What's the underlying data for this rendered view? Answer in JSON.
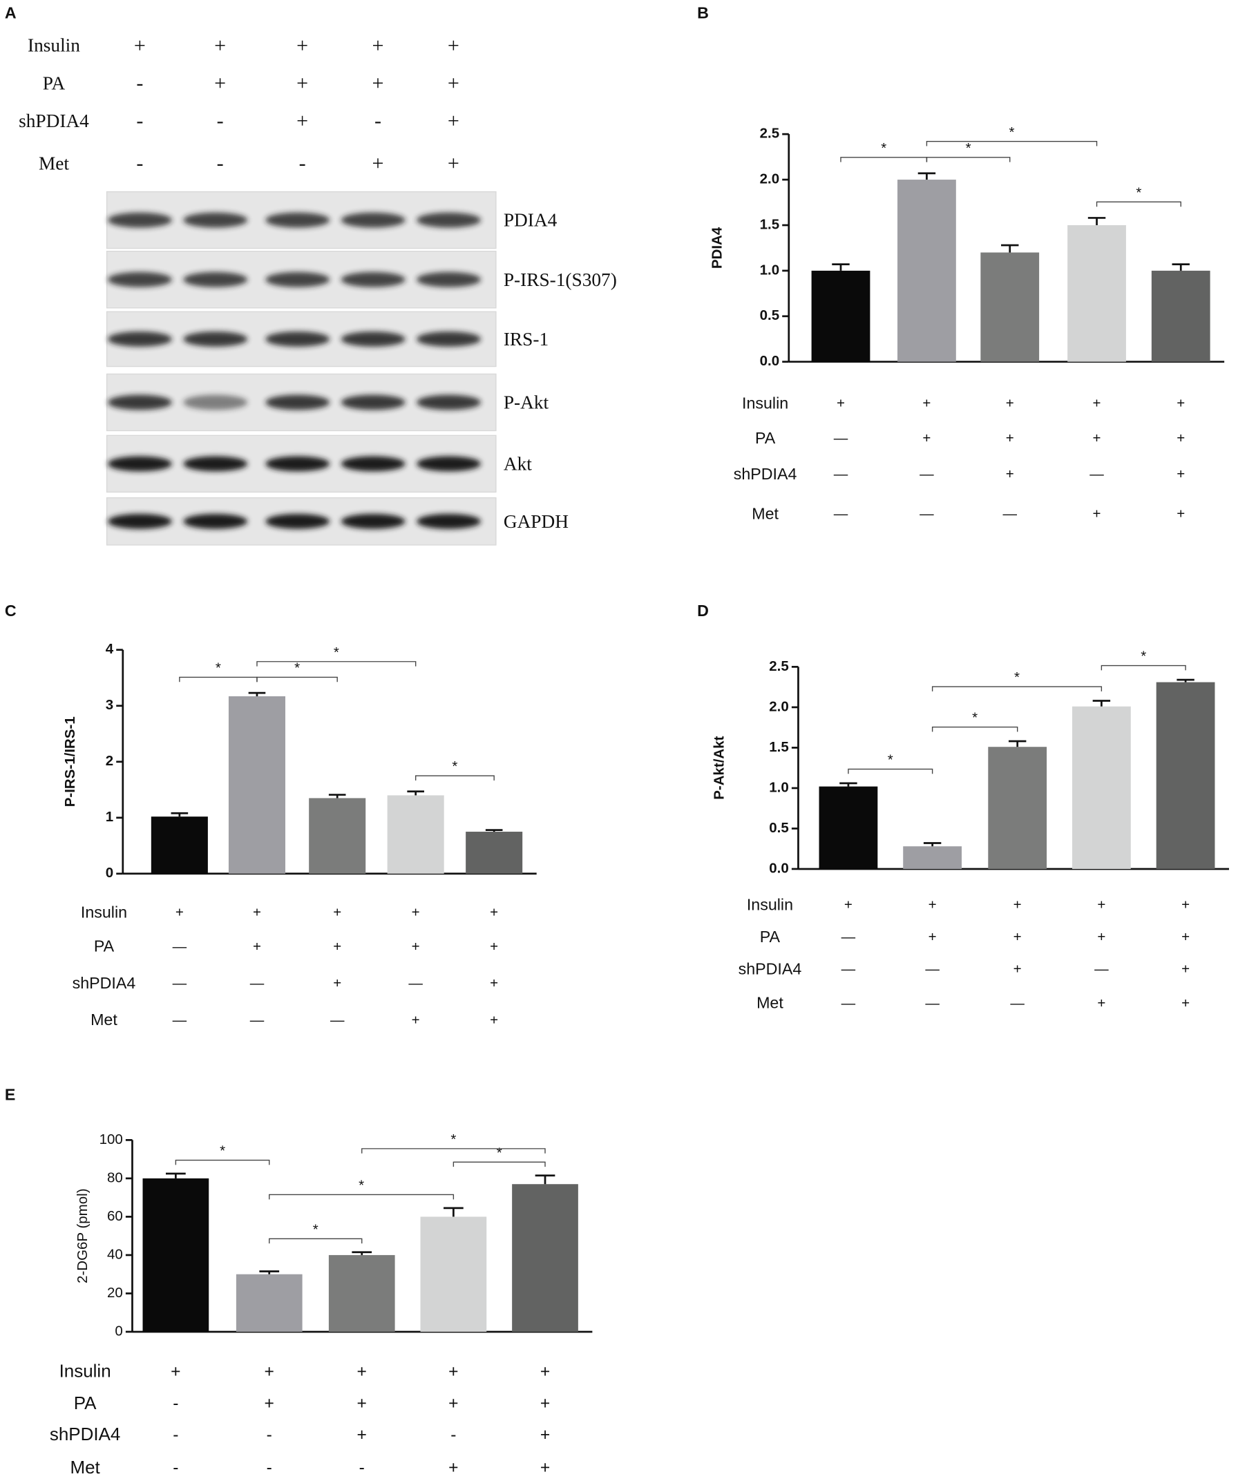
{
  "blot": {
    "panel": "A",
    "conditions": [
      {
        "name": "Insulin",
        "values": [
          "+",
          "+",
          "+",
          "+",
          "+"
        ]
      },
      {
        "name": "PA",
        "values": [
          "-",
          "+",
          "+",
          "+",
          "+"
        ]
      },
      {
        "name": "shPDIA4",
        "values": [
          "-",
          "-",
          "+",
          "-",
          "+"
        ]
      },
      {
        "name": "Met",
        "values": [
          "-",
          "-",
          "-",
          "+",
          "+"
        ]
      }
    ],
    "bands": [
      "PDIA4",
      "P-IRS-1(S307)",
      "IRS-1",
      "P-Akt",
      "Akt",
      "GAPDH"
    ]
  },
  "chart_data": [
    {
      "type": "bar",
      "panel": "B",
      "ylabel": "PDIA4",
      "values": [
        1.0,
        2.0,
        1.2,
        1.5,
        1.0
      ],
      "errors": [
        0.07,
        0.07,
        0.08,
        0.08,
        0.07
      ],
      "colors": [
        "#0a0a0a",
        "#9e9ea3",
        "#7b7c7b",
        "#d3d4d4",
        "#626362"
      ],
      "ylim": [
        0,
        2.5
      ],
      "yticks": [
        {
          "value": 0,
          "label": "0.0"
        },
        0.5,
        {
          "value": 1,
          "label": "1.0"
        },
        1.5,
        {
          "value": 2,
          "label": "2.0"
        },
        2.5
      ],
      "brackets": [
        {
          "from": 0,
          "to": 1,
          "label": "*"
        },
        {
          "from": 1,
          "to": 2,
          "label": "*"
        },
        {
          "from": 1,
          "to": 3,
          "label": "*"
        },
        {
          "from": 3,
          "to": 4,
          "label": "*"
        }
      ],
      "conditions": [
        {
          "name": "Insulin",
          "values": [
            "+",
            "+",
            "+",
            "+",
            "+"
          ]
        },
        {
          "name": "PA",
          "values": [
            "—",
            "+",
            "+",
            "+",
            "+"
          ]
        },
        {
          "name": "shPDIA4",
          "values": [
            "—",
            "—",
            "+",
            "—",
            "+"
          ]
        },
        {
          "name": "Met",
          "values": [
            "—",
            "—",
            "—",
            "+",
            "+"
          ]
        }
      ]
    },
    {
      "type": "bar",
      "panel": "C",
      "ylabel": "P-IRS-1/IRS-1",
      "values": [
        1.02,
        3.17,
        1.35,
        1.4,
        0.75
      ],
      "errors": [
        0.06,
        0.06,
        0.06,
        0.07,
        0.03
      ],
      "colors": [
        "#0a0a0a",
        "#9e9ea3",
        "#7b7c7b",
        "#d3d4d4",
        "#626362"
      ],
      "ylim": [
        0,
        4
      ],
      "yticks": [
        0,
        1,
        2,
        3,
        4
      ],
      "brackets": [
        {
          "from": 0,
          "to": 1,
          "label": "*"
        },
        {
          "from": 1,
          "to": 2,
          "label": "*"
        },
        {
          "from": 1,
          "to": 3,
          "label": "*"
        },
        {
          "from": 3,
          "to": 4,
          "label": "*"
        }
      ],
      "conditions": [
        {
          "name": "Insulin",
          "values": [
            "+",
            "+",
            "+",
            "+",
            "+"
          ]
        },
        {
          "name": "PA",
          "values": [
            "—",
            "+",
            "+",
            "+",
            "+"
          ]
        },
        {
          "name": "shPDIA4",
          "values": [
            "—",
            "—",
            "+",
            "—",
            "+"
          ]
        },
        {
          "name": "Met",
          "values": [
            "—",
            "—",
            "—",
            "+",
            "+"
          ]
        }
      ]
    },
    {
      "type": "bar",
      "panel": "D",
      "ylabel": "P-Akt/Akt",
      "values": [
        1.02,
        0.28,
        1.51,
        2.01,
        2.31
      ],
      "errors": [
        0.04,
        0.04,
        0.07,
        0.07,
        0.03
      ],
      "colors": [
        "#0a0a0a",
        "#9e9ea3",
        "#7b7c7b",
        "#d3d4d4",
        "#626362"
      ],
      "ylim": [
        0,
        2.5
      ],
      "yticks": [
        {
          "value": 0,
          "label": "0.0"
        },
        0.5,
        {
          "value": 1,
          "label": "1.0"
        },
        1.5,
        {
          "value": 2,
          "label": "2.0"
        },
        2.5
      ],
      "brackets": [
        {
          "from": 0,
          "to": 1,
          "label": "*"
        },
        {
          "from": 1,
          "to": 2,
          "label": "*"
        },
        {
          "from": 1,
          "to": 3,
          "label": "*"
        },
        {
          "from": 3,
          "to": 4,
          "label": "*"
        }
      ],
      "conditions": [
        {
          "name": "Insulin",
          "values": [
            "+",
            "+",
            "+",
            "+",
            "+"
          ]
        },
        {
          "name": "PA",
          "values": [
            "—",
            "+",
            "+",
            "+",
            "+"
          ]
        },
        {
          "name": "shPDIA4",
          "values": [
            "—",
            "—",
            "+",
            "—",
            "+"
          ]
        },
        {
          "name": "Met",
          "values": [
            "—",
            "—",
            "—",
            "+",
            "+"
          ]
        }
      ]
    },
    {
      "type": "bar",
      "panel": "E",
      "ylabel": "2-DG6P (pmol)",
      "values": [
        80,
        30,
        40,
        60,
        77
      ],
      "errors": [
        2.5,
        1.5,
        1.5,
        4.5,
        4.5
      ],
      "colors": [
        "#0a0a0a",
        "#9e9ea3",
        "#7b7c7b",
        "#d3d4d4",
        "#626362"
      ],
      "ylim": [
        0,
        100
      ],
      "yticks": [
        0,
        20,
        40,
        60,
        80,
        100
      ],
      "brackets": [
        {
          "from": 0,
          "to": 1,
          "label": "*"
        },
        {
          "from": 1,
          "to": 2,
          "label": "*"
        },
        {
          "from": 1,
          "to": 3,
          "label": "*"
        },
        {
          "from": 3,
          "to": 4,
          "label": "*"
        },
        {
          "from": 2,
          "to": 4,
          "label": "*"
        }
      ],
      "conditions": [
        {
          "name": "Insulin",
          "values": [
            "+",
            "+",
            "+",
            "+",
            "+"
          ]
        },
        {
          "name": "PA",
          "values": [
            "-",
            "+",
            "+",
            "+",
            "+"
          ]
        },
        {
          "name": "shPDIA4",
          "values": [
            "-",
            "-",
            "+",
            "-",
            "+"
          ]
        },
        {
          "name": "Met",
          "values": [
            "-",
            "-",
            "-",
            "+",
            "+"
          ]
        }
      ]
    }
  ]
}
